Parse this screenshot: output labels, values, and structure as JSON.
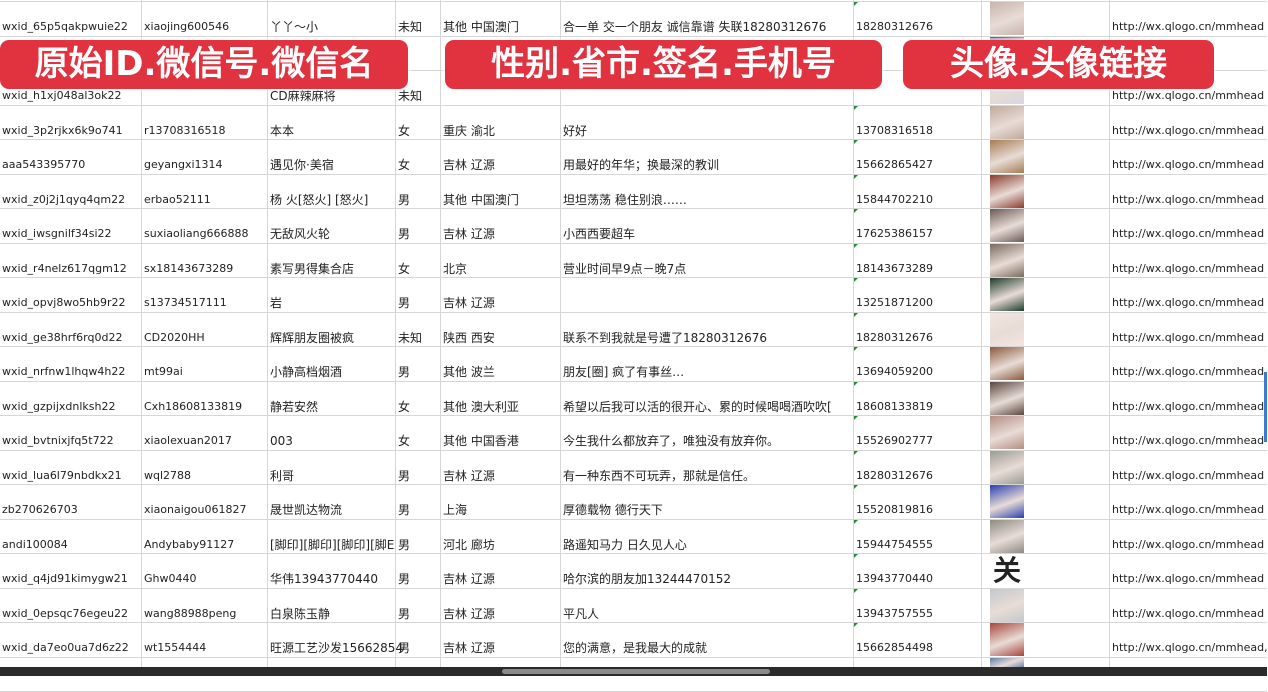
{
  "columns": [
    "原始ID",
    "微信号",
    "微信名",
    "性别",
    "省市",
    "签名",
    "手机号",
    "头像",
    "头像链接"
  ],
  "rows": [
    {
      "id": "wxid_65p5qakpwuie22",
      "wechat": "xiaojing600546",
      "name": "丫丫～小",
      "gender": "未知",
      "region": "其他 中国澳门",
      "signature": "合一单 交一个朋友 诚信靠谱 失联18280312676",
      "phone": "18280312676",
      "avatar_color": "#c9b3ad",
      "link": "http://wx.qlogo.cn/mmhead"
    },
    {
      "id": "",
      "wechat": "",
      "name": "",
      "gender": "",
      "region": "",
      "signature": "",
      "phone": "",
      "avatar_color": "#4a5f8e",
      "link": ""
    },
    {
      "id": "wxid_h1xj048al3ok22",
      "wechat": "",
      "name": "CD麻辣麻将",
      "gender": "未知",
      "region": "",
      "signature": "",
      "phone": "",
      "avatar_color": "#d7d7e0",
      "link": "http://wx.qlogo.cn/mmhead"
    },
    {
      "id": "wxid_3p2rjkx6k9o741",
      "wechat": "r13708316518",
      "name": "本本",
      "gender": "女",
      "region": "重庆 渝北",
      "signature": "好好",
      "phone": "13708316518",
      "avatar_color": "#bfa99c",
      "link": "http://wx.qlogo.cn/mmhead"
    },
    {
      "id": "aaa543395770",
      "wechat": "geyangxi1314",
      "name": "遇见你·美宿",
      "gender": "女",
      "region": "吉林 辽源",
      "signature": "用最好的年华；换最深的教训",
      "phone": "15662865427",
      "avatar_color": "#a67c52",
      "link": "http://wx.qlogo.cn/mmhead"
    },
    {
      "id": "wxid_z0j2j1qyq4qm22",
      "wechat": "erbao52111",
      "name": "杨 火[怒火] [怒火]",
      "gender": "男",
      "region": "其他 中国澳门",
      "signature": "坦坦荡荡 稳住别浪……",
      "phone": "15844702210",
      "avatar_color": "#8c3a2e",
      "link": "http://wx.qlogo.cn/mmhead"
    },
    {
      "id": "wxid_iwsgnilf34si22",
      "wechat": "suxiaoliang666888",
      "name": "无敌风火轮",
      "gender": "男",
      "region": "吉林 辽源",
      "signature": "小西西要超车",
      "phone": "17625386157",
      "avatar_color": "#6b5a55",
      "link": "http://wx.qlogo.cn/mmhead"
    },
    {
      "id": "wxid_r4nelz617qgm12",
      "wechat": "sx18143673289",
      "name": "素写男得集合店",
      "gender": "女",
      "region": "北京",
      "signature": "营业时间早9点－晚7点",
      "phone": "18143673289",
      "avatar_color": "#7a6a5e",
      "link": "http://wx.qlogo.cn/mmhead"
    },
    {
      "id": "wxid_opvj8wo5hb9r22",
      "wechat": "s13734517111",
      "name": "岩",
      "gender": "男",
      "region": "吉林 辽源",
      "signature": "",
      "phone": "13251871200",
      "avatar_color": "#1f3b2c",
      "link": "http://wx.qlogo.cn/mmhead"
    },
    {
      "id": "wxid_ge38hrf6rq0d22",
      "wechat": "CD2020HH",
      "name": "辉辉朋友圈被疯",
      "gender": "未知",
      "region": "陕西 西安",
      "signature": "联系不到我就是号遭了18280312676",
      "phone": "18280312676",
      "avatar_color": "#f3e6e2",
      "link": "http://wx.qlogo.cn/mmhead"
    },
    {
      "id": "wxid_nrfnw1lhqw4h22",
      "wechat": "mt99ai",
      "name": "小静高档烟酒",
      "gender": "男",
      "region": "其他 波兰",
      "signature": "朋友[圈] 疯了有事丝…",
      "phone": "13694059200",
      "avatar_color": "#8b5a3c",
      "link": "http://wx.qlogo.cn/mmhead"
    },
    {
      "id": "wxid_gzpijxdnlksh22",
      "wechat": "Cxh18608133819",
      "name": "静若安然",
      "gender": "女",
      "region": "其他 澳大利亚",
      "signature": "希望以后我可以活的很开心、累的时候喝喝酒吹吹[",
      "phone": "18608133819",
      "avatar_color": "#5a4640",
      "link": "http://wx.qlogo.cn/mmhead"
    },
    {
      "id": "wxid_bvtnixjfq5t722",
      "wechat": "xiaolexuan2017",
      "name": "003",
      "gender": "女",
      "region": "其他 中国香港",
      "signature": "今生我什么都放弃了，唯独没有放弃你。",
      "phone": "15526902777",
      "avatar_color": "#b58e84",
      "link": "http://wx.qlogo.cn/mmhead"
    },
    {
      "id": "wxid_lua6l79nbdkx21",
      "wechat": "wql2788",
      "name": "利哥",
      "gender": "男",
      "region": "吉林 辽源",
      "signature": "有一种东西不可玩弄，那就是信任。",
      "phone": "18280312676",
      "avatar_color": "#9a9c94",
      "link": "http://wx.qlogo.cn/mmhead"
    },
    {
      "id": "zb270626703",
      "wechat": "xiaonaigou061827",
      "name": "晟世凯达物流",
      "gender": "男",
      "region": "上海",
      "signature": "厚德载物 德行天下",
      "phone": "15520819816",
      "avatar_color": "#2b3fb0",
      "link": "http://wx.qlogo.cn/mmhead"
    },
    {
      "id": "andi100084",
      "wechat": "Andybaby91127",
      "name": "[脚印][脚印][脚印][脚E",
      "gender": "男",
      "region": "河北 廊坊",
      "signature": "路遥知马力 日久见人心",
      "phone": "15944754555",
      "avatar_color": "#8d8a84",
      "link": "http://wx.qlogo.cn/mmhead"
    },
    {
      "id": "wxid_q4jd91kimygw21",
      "wechat": "Ghw0440",
      "name": "华伟13943770440",
      "gender": "男",
      "region": "吉林 辽源",
      "signature": "哈尔滨的朋友加13244470152",
      "phone": "13943770440",
      "avatar_color": "#ffffff",
      "avatar_glyph": "关",
      "link": "http://wx.qlogo.cn/mmhead"
    },
    {
      "id": "wxid_0epsqc76egeu22",
      "wechat": "wang88988peng",
      "name": "白泉陈玉静",
      "gender": "男",
      "region": "吉林 辽源",
      "signature": "平凡人",
      "phone": "13943757555",
      "avatar_color": "#c4c8cc",
      "link": "http://wx.qlogo.cn/mmhead"
    },
    {
      "id": "wxid_da7eo0ua7d6z22",
      "wechat": "wt1554444",
      "name": "旺源工艺沙发15662854",
      "gender": "男",
      "region": "吉林 辽源",
      "signature": "您的满意，是我最大的成就",
      "phone": "15662854498",
      "avatar_color": "#a8463a",
      "link": "http://wx.qlogo.cn/mmhead,"
    },
    {
      "id": "",
      "wechat": "",
      "name": "",
      "gender": "",
      "region": "",
      "signature": "",
      "phone": "",
      "avatar_color": "#5f7fa8",
      "link": ""
    }
  ],
  "banners": [
    {
      "text": "原始ID.微信号.微信名"
    },
    {
      "text": "性别.省市.签名.手机号"
    },
    {
      "text": "头像.头像链接"
    }
  ],
  "colors": {
    "banner": "#e0323f",
    "grid": "#d6d6d6",
    "error_marker": "#2a8a3a"
  }
}
